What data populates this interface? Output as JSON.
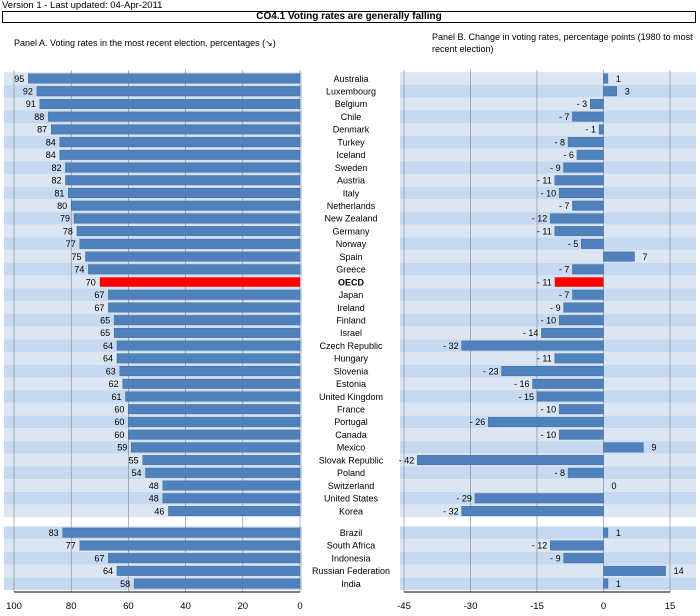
{
  "header": {
    "version": "Version 1 - Last updated: 04-Apr-2011",
    "title": "CO4.1 Voting rates are generally falling"
  },
  "panels": {
    "a_title": "Panel A. Voting rates in the most recent election, percentages (↘)",
    "b_title": "Panel B. Change in voting rates, percentage points (1980 to most recent election)"
  },
  "colors": {
    "bar": "#4f81bd",
    "highlight": "#ff0000",
    "band_light": "#dce6f2",
    "band_dark": "#c6d9f1",
    "grid": "#808080"
  },
  "chart_data": [
    {
      "type": "bar",
      "orientation": "horizontal",
      "title": "Panel A. Voting rates in the most recent election, percentages (↘)",
      "xlim": [
        0,
        100
      ],
      "x_reversed": true,
      "xticks": [
        100,
        80,
        60,
        40,
        20,
        0
      ],
      "highlight": "OECD",
      "categories": [
        "Australia",
        "Luxembourg",
        "Belgium",
        "Chile",
        "Denmark",
        "Turkey",
        "Iceland",
        "Sweden",
        "Austria",
        "Italy",
        "Netherlands",
        "New Zealand",
        "Germany",
        "Norway",
        "Spain",
        "Greece",
        "OECD",
        "Japan",
        "Ireland",
        "Finland",
        "Israel",
        "Czech Republic",
        "Hungary",
        "Slovenia",
        "Estonia",
        "United Kingdom",
        "France",
        "Portugal",
        "Canada",
        "Mexico",
        "Slovak Republic",
        "Poland",
        "Switzerland",
        "United States",
        "Korea",
        "Brazil",
        "South Africa",
        "Indonesia",
        "Russian Federation",
        "India"
      ],
      "values": [
        95,
        92,
        91,
        88,
        87,
        84,
        84,
        82,
        82,
        81,
        80,
        79,
        78,
        77,
        75,
        74,
        70,
        67,
        67,
        65,
        65,
        64,
        64,
        63,
        62,
        61,
        60,
        60,
        60,
        59,
        55,
        54,
        48,
        48,
        46,
        83,
        77,
        67,
        64,
        58
      ],
      "labels": [
        "95",
        "92",
        "91",
        "88",
        "87",
        "84",
        "84",
        "82",
        "82",
        "81",
        "80",
        "79",
        "78",
        "77",
        "75",
        "74",
        "70",
        "67",
        "67",
        "65",
        "65",
        "64",
        "64",
        "63",
        "62",
        "61",
        "60",
        "60",
        "60",
        "59",
        "55",
        "54",
        "48",
        "48",
        "46",
        "83",
        "77",
        "67",
        "64",
        "58"
      ]
    },
    {
      "type": "bar",
      "orientation": "horizontal",
      "title": "Panel B. Change in voting rates, percentage points (1980 to most recent election)",
      "xlim": [
        -45,
        15
      ],
      "xticks": [
        -45,
        -30,
        -15,
        0,
        15
      ],
      "highlight": "OECD",
      "categories": [
        "Australia",
        "Luxembourg",
        "Belgium",
        "Chile",
        "Denmark",
        "Turkey",
        "Iceland",
        "Sweden",
        "Austria",
        "Italy",
        "Netherlands",
        "New Zealand",
        "Germany",
        "Norway",
        "Spain",
        "Greece",
        "OECD",
        "Japan",
        "Ireland",
        "Finland",
        "Israel",
        "Czech Republic",
        "Hungary",
        "Slovenia",
        "Estonia",
        "United Kingdom",
        "France",
        "Portugal",
        "Canada",
        "Mexico",
        "Slovak Republic",
        "Poland",
        "Switzerland",
        "United States",
        "Korea",
        "Brazil",
        "South Africa",
        "Indonesia",
        "Russian Federation",
        "India"
      ],
      "values": [
        1,
        3,
        -3,
        -7,
        -1,
        -8,
        -6,
        -9,
        -11,
        -10,
        -7,
        -12,
        -11,
        -5,
        7,
        -7,
        -11,
        -7,
        -9,
        -10,
        -14,
        -32,
        -11,
        -23,
        -16,
        -15,
        -10,
        -26,
        -10,
        9,
        -42,
        -8,
        0,
        -29,
        -32,
        1,
        -12,
        -9,
        14,
        1
      ],
      "labels": [
        "1",
        "3",
        "- 3",
        "- 7",
        "- 1",
        "- 8",
        "- 6",
        "- 9",
        "- 11",
        "- 10",
        "- 7",
        "- 12",
        "- 11",
        "- 5",
        "7",
        "- 7",
        "- 11",
        "- 7",
        "- 9",
        "- 10",
        "- 14",
        "- 32",
        "- 11",
        "- 23",
        "- 16",
        "- 15",
        "- 10",
        "- 26",
        "- 10",
        "9",
        "- 42",
        "- 8",
        "0",
        "- 29",
        "- 32",
        "1",
        "- 12",
        "- 9",
        "14",
        "1"
      ]
    }
  ]
}
